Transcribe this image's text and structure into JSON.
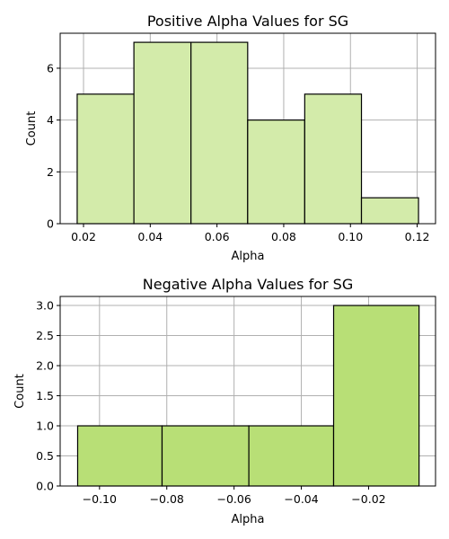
{
  "chart_data": [
    {
      "type": "bar",
      "title": "Positive Alpha Values for SG",
      "xlabel": "Alpha",
      "ylabel": "Count",
      "bin_edges": [
        0.0181,
        0.0351,
        0.0522,
        0.0692,
        0.0863,
        0.1033,
        0.1204
      ],
      "values": [
        5,
        7,
        7,
        4,
        5,
        1
      ],
      "xlim": [
        0.013,
        0.1255
      ],
      "ylim": [
        0,
        7.35
      ],
      "xticks": [
        0.02,
        0.04,
        0.06,
        0.08,
        0.1,
        0.12
      ],
      "xtick_labels": [
        "0.02",
        "0.04",
        "0.06",
        "0.08",
        "0.10",
        "0.12"
      ],
      "yticks": [
        0,
        2,
        4,
        6
      ],
      "ytick_labels": [
        "0",
        "2",
        "4",
        "6"
      ],
      "grid": true,
      "bar_color": "#d3ebaa"
    },
    {
      "type": "bar",
      "title": "Negative Alpha Values for SG",
      "xlabel": "Alpha",
      "ylabel": "Count",
      "bin_edges": [
        -0.1065,
        -0.0814,
        -0.0556,
        -0.0304,
        -0.005
      ],
      "values": [
        1,
        1,
        1,
        3
      ],
      "xlim": [
        -0.1117,
        -0.0001
      ],
      "ylim": [
        0,
        3.15
      ],
      "xticks": [
        -0.1,
        -0.08,
        -0.06,
        -0.04,
        -0.02
      ],
      "xtick_labels": [
        "−0.10",
        "−0.08",
        "−0.06",
        "−0.04",
        "−0.02"
      ],
      "yticks": [
        0,
        0.5,
        1.0,
        1.5,
        2.0,
        2.5,
        3.0
      ],
      "ytick_labels": [
        "0.0",
        "0.5",
        "1.0",
        "1.5",
        "2.0",
        "2.5",
        "3.0"
      ],
      "grid": true,
      "bar_color": "#b8df76"
    }
  ]
}
